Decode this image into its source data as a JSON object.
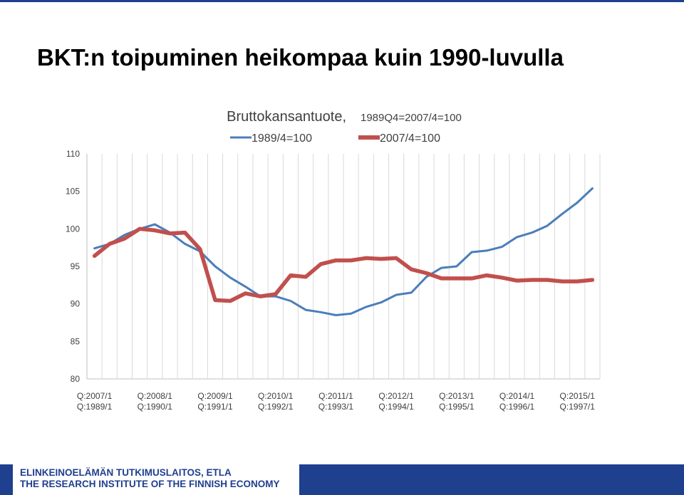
{
  "slide": {
    "title": "BKT:n toipuminen heikompaa kuin 1990-luvulla"
  },
  "footer": {
    "line1": "ELINKEINOELÄMÄN TUTKIMUSLAITOS, ETLA",
    "line2": "THE RESEARCH INSTITUTE OF THE FINNISH ECONOMY",
    "band_color": "#1f3f8f"
  },
  "chart_data": {
    "type": "line",
    "title": "Bruttokansantuote,",
    "subtitle": "1989Q4=2007/4=100",
    "ylim": [
      80,
      110
    ],
    "yticks": [
      80,
      85,
      90,
      95,
      100,
      105,
      110
    ],
    "grid": true,
    "legend_placement": "top",
    "x_tick_labels_top": [
      "Q:2007/1",
      "Q:2008/1",
      "Q:2009/1",
      "Q:2010/1",
      "Q:2011/1",
      "Q:2012/1",
      "Q:2013/1",
      "Q:2014/1",
      "Q:2015/1"
    ],
    "x_tick_labels_bottom": [
      "Q:1989/1",
      "Q:1990/1",
      "Q:1991/1",
      "Q:1992/1",
      "Q:1993/1",
      "Q:1994/1",
      "Q:1995/1",
      "Q:1996/1",
      "Q:1997/1"
    ],
    "series": [
      {
        "name": "1989/4=100",
        "color": "#4a7ebb",
        "values": [
          97.4,
          98.0,
          99.2,
          100.0,
          100.6,
          99.5,
          98.0,
          97.0,
          95.0,
          93.5,
          92.3,
          91.0,
          91.0,
          90.4,
          89.2,
          88.9,
          88.5,
          88.7,
          89.6,
          90.2,
          91.2,
          91.5,
          93.6,
          94.8,
          95.0,
          96.9,
          97.1,
          97.6,
          98.9,
          99.5,
          100.4,
          102.0,
          103.5,
          105.4
        ]
      },
      {
        "name": "2007/4=100",
        "color": "#c0504d",
        "values": [
          96.4,
          98.0,
          98.7,
          100.0,
          99.8,
          99.4,
          99.5,
          97.3,
          90.5,
          90.4,
          91.4,
          91.0,
          91.3,
          93.8,
          93.6,
          95.3,
          95.8,
          95.8,
          96.1,
          96.0,
          96.1,
          94.6,
          94.1,
          93.4,
          93.4,
          93.4,
          93.8,
          93.5,
          93.1,
          93.2,
          93.2,
          93.0,
          93.0,
          93.2
        ]
      }
    ]
  }
}
